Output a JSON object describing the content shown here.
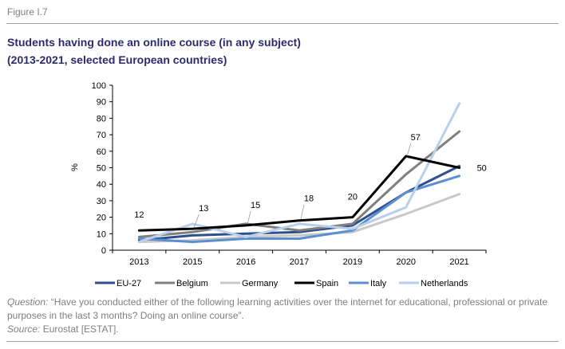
{
  "figure_label": "Figure I.7",
  "title_line1": "Students having done an online course (in any subject)",
  "title_line2": "(2013-2021, selected European countries)",
  "question_label": "Question:",
  "question_text": " “Have you conducted either of the following learning activities over the internet for educational, professional or private purposes in the last 3 months? Doing an online course”.",
  "source_label": "Source:",
  "source_text": " Eurostat [ESTAT].",
  "chart_data": {
    "type": "line",
    "title": "Students having done an online course (in any subject)",
    "subtitle": "(2013-2021, selected European countries)",
    "ylabel": "%",
    "xlabel": "",
    "ylim": [
      0,
      100
    ],
    "yticks": [
      0,
      10,
      20,
      30,
      40,
      50,
      60,
      70,
      80,
      90,
      100
    ],
    "categories": [
      "2013",
      "2015",
      "2016",
      "2017",
      "2019",
      "2020",
      "2021"
    ],
    "grid": false,
    "legend_position": "bottom",
    "series": [
      {
        "name": "EU-27",
        "color": "#2e4f8e",
        "values": [
          6,
          9,
          10,
          11,
          15,
          35,
          51
        ]
      },
      {
        "name": "Belgium",
        "color": "#7f7f7f",
        "values": [
          8,
          11,
          16,
          12,
          16,
          46,
          72
        ]
      },
      {
        "name": "Germany",
        "color": "#c8c8c8",
        "values": [
          5,
          6,
          8,
          9,
          11,
          22,
          34
        ]
      },
      {
        "name": "Spain",
        "color": "#000000",
        "values": [
          12,
          13,
          15,
          18,
          20,
          57,
          50
        ]
      },
      {
        "name": "Italy",
        "color": "#5b8fd0",
        "values": [
          7,
          5,
          7,
          7,
          12,
          35,
          45
        ]
      },
      {
        "name": "Netherlands",
        "color": "#b9cfec",
        "values": [
          5,
          16,
          8,
          16,
          13,
          26,
          89
        ]
      }
    ],
    "annotations": [
      {
        "series": "Spain",
        "index": 0,
        "text": "12"
      },
      {
        "series": "Spain",
        "index": 1,
        "text": "13"
      },
      {
        "series": "Spain",
        "index": 2,
        "text": "15"
      },
      {
        "series": "Spain",
        "index": 3,
        "text": "18"
      },
      {
        "series": "Spain",
        "index": 4,
        "text": "20"
      },
      {
        "series": "Spain",
        "index": 5,
        "text": "57"
      },
      {
        "series": "Spain",
        "index": 6,
        "text": "50"
      }
    ]
  }
}
